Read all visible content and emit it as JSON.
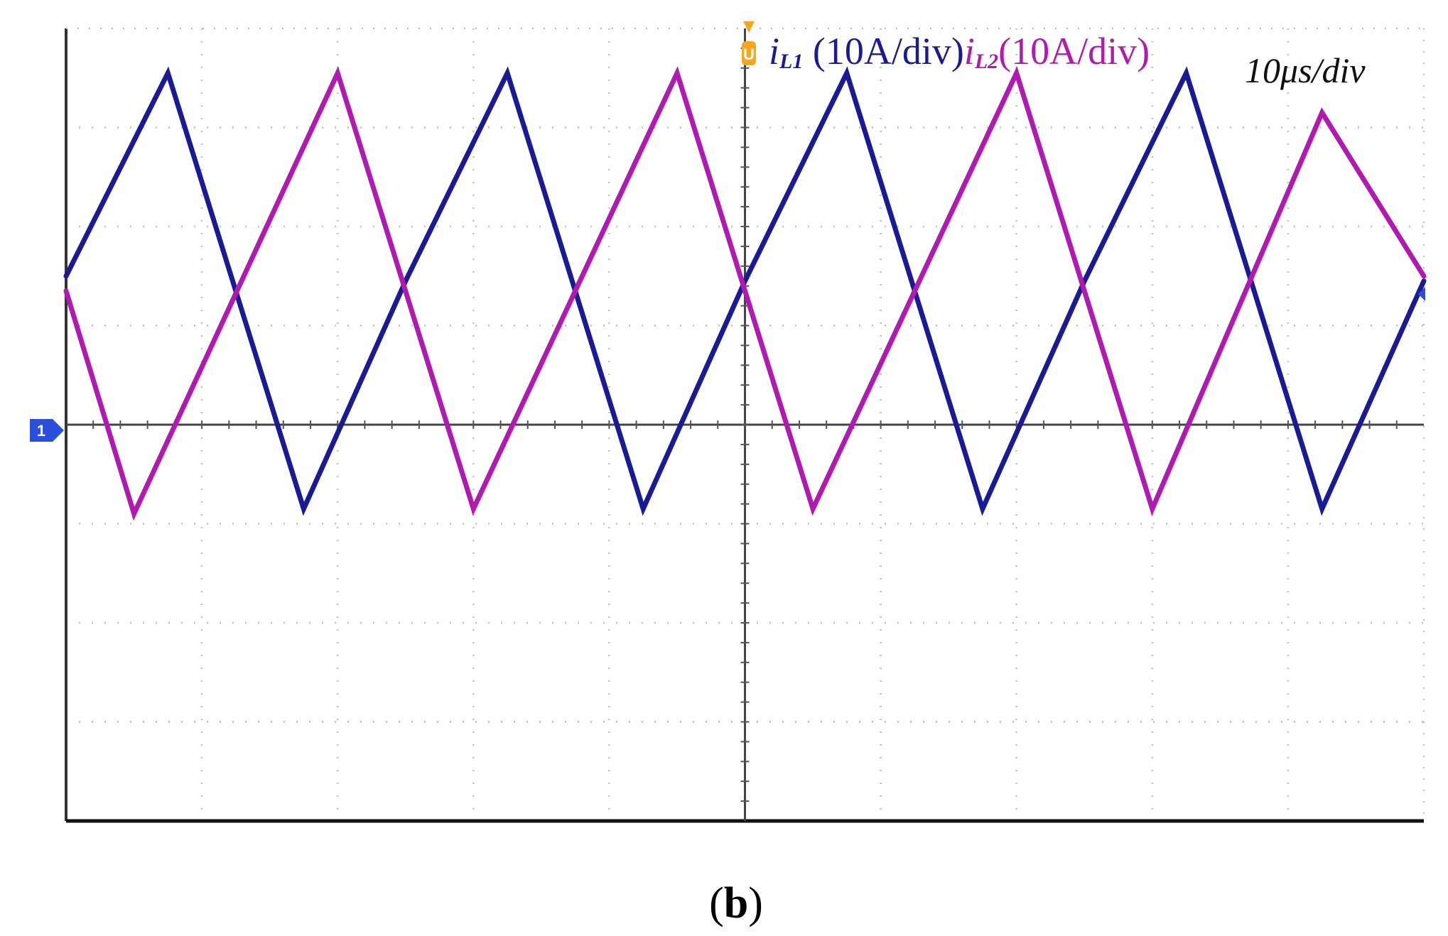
{
  "chart_data": {
    "type": "line",
    "title": "",
    "xlabel": "",
    "ylabel": "",
    "grid": true,
    "x_divisions": 10,
    "y_divisions": 8,
    "xlim": [
      0,
      10
    ],
    "ylim": [
      -4,
      4
    ],
    "timebase_label": "10μs/div",
    "trigger_marker": "U",
    "ground_marker": "1",
    "caption_open": "(",
    "caption_letter": "b",
    "caption_close": ")",
    "series": [
      {
        "name_main": "i",
        "name_sub": "L1",
        "scale_label": " (10A/div)",
        "color": "#1a1a96",
        "x": [
          0,
          0.75,
          1.75,
          2.5,
          3.25,
          4.25,
          5.0,
          5.75,
          6.75,
          7.5,
          8.25,
          9.25,
          10.0
        ],
        "y": [
          1.5,
          3.55,
          -0.85,
          1.45,
          3.55,
          -0.85,
          1.45,
          3.55,
          -0.85,
          1.45,
          3.55,
          -0.85,
          1.45
        ]
      },
      {
        "name_main": "i",
        "name_sub": "L2",
        "scale_label": "(10A/div)",
        "color": "#b01ab0",
        "x": [
          0,
          0.5,
          2.0,
          3.0,
          4.5,
          5.5,
          7.0,
          8.0,
          9.25,
          10.0
        ],
        "y": [
          1.35,
          -0.9,
          3.55,
          -0.85,
          3.55,
          -0.85,
          3.55,
          -0.85,
          3.15,
          1.5
        ]
      }
    ]
  }
}
